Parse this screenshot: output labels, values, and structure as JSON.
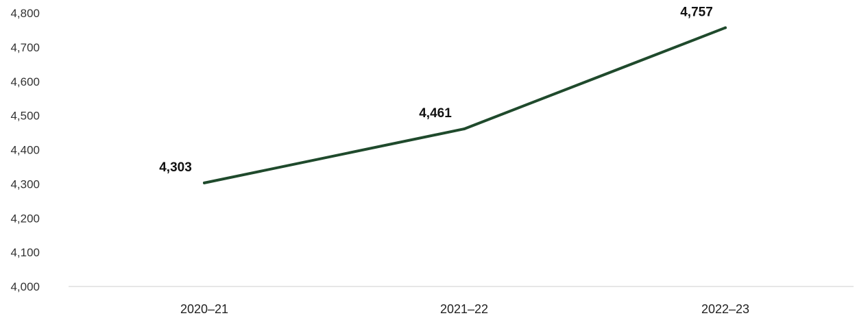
{
  "chart_data": {
    "type": "line",
    "categories": [
      "2020–21",
      "2021–22",
      "2022–23"
    ],
    "series": [
      {
        "values": [
          4303,
          4461,
          4757
        ],
        "color": "#1f4a2c"
      }
    ],
    "data_labels": [
      "4,303",
      "4,461",
      "4,757"
    ],
    "y_ticks": [
      4000,
      4100,
      4200,
      4300,
      4400,
      4500,
      4600,
      4700,
      4800
    ],
    "y_tick_labels": [
      "4,000",
      "4,100",
      "4,200",
      "4,300",
      "4,400",
      "4,500",
      "4,600",
      "4,700",
      "4,800"
    ],
    "ylim": [
      4000,
      4800
    ],
    "title": "",
    "xlabel": "",
    "ylabel": "",
    "grid": false,
    "baseline_color": "#dddddd"
  }
}
